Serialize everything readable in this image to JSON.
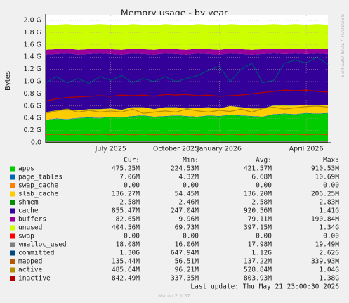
{
  "chart_data": {
    "type": "area",
    "title": "Memory usage - by year",
    "y_label": "Bytes",
    "side_label": "RRDTOOL / TOBI OETIKER",
    "last_update": "Last update: Thu May 21 23:00:30 2026",
    "footer": "Munin 2.0.57",
    "stat_columns": [
      "Cur:",
      "Min:",
      "Avg:",
      "Max:"
    ],
    "categories": [
      null,
      null,
      null,
      null,
      null,
      null,
      "July 2025",
      null,
      null,
      null,
      null,
      null,
      "October 2025",
      null,
      null,
      null,
      "January 2026",
      null,
      null,
      null,
      null,
      null,
      null,
      null,
      "April 2026",
      null,
      null
    ],
    "ylim": [
      0,
      2.0
    ],
    "yticks": [
      {
        "value": 0,
        "label": "0.0"
      },
      {
        "value": 0.2,
        "label": "0.2 G"
      },
      {
        "value": 0.4,
        "label": "0.4 G"
      },
      {
        "value": 0.6,
        "label": "0.6 G"
      },
      {
        "value": 0.8,
        "label": "0.8 G"
      },
      {
        "value": 1.0,
        "label": "1.0 G"
      },
      {
        "value": 1.2,
        "label": "1.2 G"
      },
      {
        "value": 1.4,
        "label": "1.4 G"
      },
      {
        "value": 1.6,
        "label": "1.6 G"
      },
      {
        "value": 1.8,
        "label": "1.8 G"
      },
      {
        "value": 2.0,
        "label": "2.0 G"
      }
    ],
    "grid": true,
    "series": [
      {
        "name": "apps",
        "color": "#00cc00",
        "style": "stack",
        "stats": [
          "475.25M",
          "224.53M",
          "421.57M",
          "910.53M"
        ],
        "values": [
          0.37,
          0.39,
          0.38,
          0.4,
          0.41,
          0.4,
          0.42,
          0.41,
          0.43,
          0.44,
          0.42,
          0.43,
          0.44,
          0.43,
          0.42,
          0.44,
          0.43,
          0.45,
          0.44,
          0.43,
          0.42,
          0.46,
          0.47,
          0.46,
          0.48,
          0.47,
          0.48
        ]
      },
      {
        "name": "page_tables",
        "color": "#0066b3",
        "style": "stack",
        "stats": [
          "7.06M",
          "4.32M",
          "6.68M",
          "10.69M"
        ],
        "values": [
          0.007,
          0.007,
          0.007,
          0.007,
          0.007,
          0.007,
          0.007,
          0.007,
          0.007,
          0.007,
          0.007,
          0.007,
          0.007,
          0.007,
          0.007,
          0.007,
          0.007,
          0.007,
          0.007,
          0.007,
          0.007,
          0.007,
          0.007,
          0.007,
          0.007,
          0.007,
          0.007
        ]
      },
      {
        "name": "swap_cache",
        "color": "#ff8000",
        "style": "stack",
        "stats": [
          "0.00",
          "0.00",
          "0.00",
          "0.00"
        ],
        "values": [
          0,
          0,
          0,
          0,
          0,
          0,
          0,
          0,
          0,
          0,
          0,
          0,
          0,
          0,
          0,
          0,
          0,
          0,
          0,
          0,
          0,
          0,
          0,
          0,
          0,
          0,
          0
        ]
      },
      {
        "name": "slab_cache",
        "color": "#ffcc00",
        "style": "stack",
        "stats": [
          "136.27M",
          "54.45M",
          "136.20M",
          "206.25M"
        ],
        "values": [
          0.12,
          0.13,
          0.14,
          0.12,
          0.13,
          0.14,
          0.13,
          0.12,
          0.14,
          0.13,
          0.12,
          0.14,
          0.13,
          0.12,
          0.14,
          0.13,
          0.12,
          0.14,
          0.13,
          0.12,
          0.13,
          0.14,
          0.13,
          0.14,
          0.13,
          0.14,
          0.13
        ]
      },
      {
        "name": "shmem",
        "color": "#008f00",
        "style": "stack",
        "stats": [
          "2.58M",
          "2.46M",
          "2.58M",
          "2.83M"
        ],
        "values": [
          0.003,
          0.003,
          0.003,
          0.003,
          0.003,
          0.003,
          0.003,
          0.003,
          0.003,
          0.003,
          0.003,
          0.003,
          0.003,
          0.003,
          0.003,
          0.003,
          0.003,
          0.003,
          0.003,
          0.003,
          0.003,
          0.003,
          0.003,
          0.003,
          0.003,
          0.003,
          0.003
        ]
      },
      {
        "name": "cache",
        "color": "#330099",
        "style": "stack",
        "stats": [
          "855.47M",
          "247.04M",
          "920.56M",
          "1.41G"
        ],
        "values": [
          0.94,
          0.92,
          0.93,
          0.91,
          0.9,
          0.91,
          0.89,
          0.9,
          0.88,
          0.87,
          0.89,
          0.88,
          0.87,
          0.88,
          0.89,
          0.87,
          0.88,
          0.86,
          0.87,
          0.88,
          0.89,
          0.85,
          0.84,
          0.85,
          0.83,
          0.84,
          0.83
        ]
      },
      {
        "name": "buffers",
        "color": "#990099",
        "style": "stack",
        "stats": [
          "82.65M",
          "9.96M",
          "79.11M",
          "190.84M"
        ],
        "values": [
          0.08,
          0.08,
          0.08,
          0.08,
          0.08,
          0.08,
          0.08,
          0.08,
          0.08,
          0.08,
          0.08,
          0.08,
          0.08,
          0.08,
          0.08,
          0.08,
          0.08,
          0.08,
          0.08,
          0.08,
          0.08,
          0.08,
          0.08,
          0.08,
          0.08,
          0.08,
          0.08
        ]
      },
      {
        "name": "unused",
        "color": "#ccff00",
        "style": "stack",
        "stats": [
          "404.56M",
          "69.73M",
          "397.15M",
          "1.34G"
        ],
        "values": [
          0.4,
          0.4,
          0.4,
          0.4,
          0.4,
          0.4,
          0.4,
          0.4,
          0.4,
          0.4,
          0.4,
          0.4,
          0.4,
          0.4,
          0.4,
          0.4,
          0.4,
          0.4,
          0.4,
          0.4,
          0.4,
          0.4,
          0.4,
          0.4,
          0.4,
          0.4,
          0.4
        ]
      },
      {
        "name": "swap",
        "color": "#ff0000",
        "style": "line",
        "stats": [
          "0.00",
          "0.00",
          "0.00",
          "0.00"
        ],
        "values": [
          0,
          0,
          0,
          0,
          0,
          0,
          0,
          0,
          0,
          0,
          0,
          0,
          0,
          0,
          0,
          0,
          0,
          0,
          0,
          0,
          0,
          0,
          0,
          0,
          0,
          0,
          0
        ]
      },
      {
        "name": "vmalloc_used",
        "color": "#808080",
        "style": "line",
        "stats": [
          "18.08M",
          "16.06M",
          "17.98M",
          "19.49M"
        ],
        "values": [
          0.018,
          0.018,
          0.018,
          0.018,
          0.018,
          0.018,
          0.018,
          0.018,
          0.018,
          0.018,
          0.018,
          0.018,
          0.018,
          0.018,
          0.018,
          0.018,
          0.018,
          0.018,
          0.018,
          0.018,
          0.018,
          0.018,
          0.018,
          0.018,
          0.018,
          0.018,
          0.018
        ]
      },
      {
        "name": "committed",
        "color": "#00487d",
        "style": "line",
        "stats": [
          "1.30G",
          "647.94M",
          "1.12G",
          "2.62G"
        ],
        "values": [
          0.98,
          1.08,
          0.98,
          1.05,
          0.97,
          1.08,
          1.02,
          1.1,
          0.98,
          1.05,
          1.0,
          1.08,
          1.0,
          1.05,
          1.1,
          1.18,
          1.25,
          1.0,
          1.2,
          1.3,
          0.98,
          1.02,
          1.3,
          1.35,
          1.3,
          1.4,
          1.28
        ]
      },
      {
        "name": "mapped",
        "color": "#b35a00",
        "style": "line",
        "stats": [
          "135.44M",
          "56.51M",
          "137.22M",
          "339.93M"
        ],
        "values": [
          0.13,
          0.14,
          0.13,
          0.14,
          0.13,
          0.14,
          0.13,
          0.14,
          0.13,
          0.14,
          0.13,
          0.14,
          0.13,
          0.14,
          0.13,
          0.14,
          0.13,
          0.14,
          0.13,
          0.14,
          0.13,
          0.14,
          0.13,
          0.14,
          0.13,
          0.14,
          0.13
        ]
      },
      {
        "name": "active",
        "color": "#b38f00",
        "style": "line",
        "stats": [
          "485.64M",
          "96.21M",
          "528.84M",
          "1.04G"
        ],
        "values": [
          0.48,
          0.52,
          0.55,
          0.5,
          0.53,
          0.5,
          0.52,
          0.5,
          0.55,
          0.48,
          0.5,
          0.52,
          0.5,
          0.55,
          0.52,
          0.5,
          0.53,
          0.51,
          0.55,
          0.5,
          0.56,
          0.58,
          0.55,
          0.57,
          0.59,
          0.6,
          0.58
        ]
      },
      {
        "name": "inactive",
        "color": "#b30000",
        "style": "line",
        "stats": [
          "842.49M",
          "337.35M",
          "803.93M",
          "1.38G"
        ],
        "values": [
          0.68,
          0.72,
          0.74,
          0.75,
          0.76,
          0.77,
          0.76,
          0.78,
          0.77,
          0.78,
          0.76,
          0.79,
          0.78,
          0.79,
          0.77,
          0.78,
          0.76,
          0.77,
          0.78,
          0.8,
          0.82,
          0.84,
          0.86,
          0.85,
          0.86,
          0.84,
          0.83
        ]
      }
    ]
  }
}
